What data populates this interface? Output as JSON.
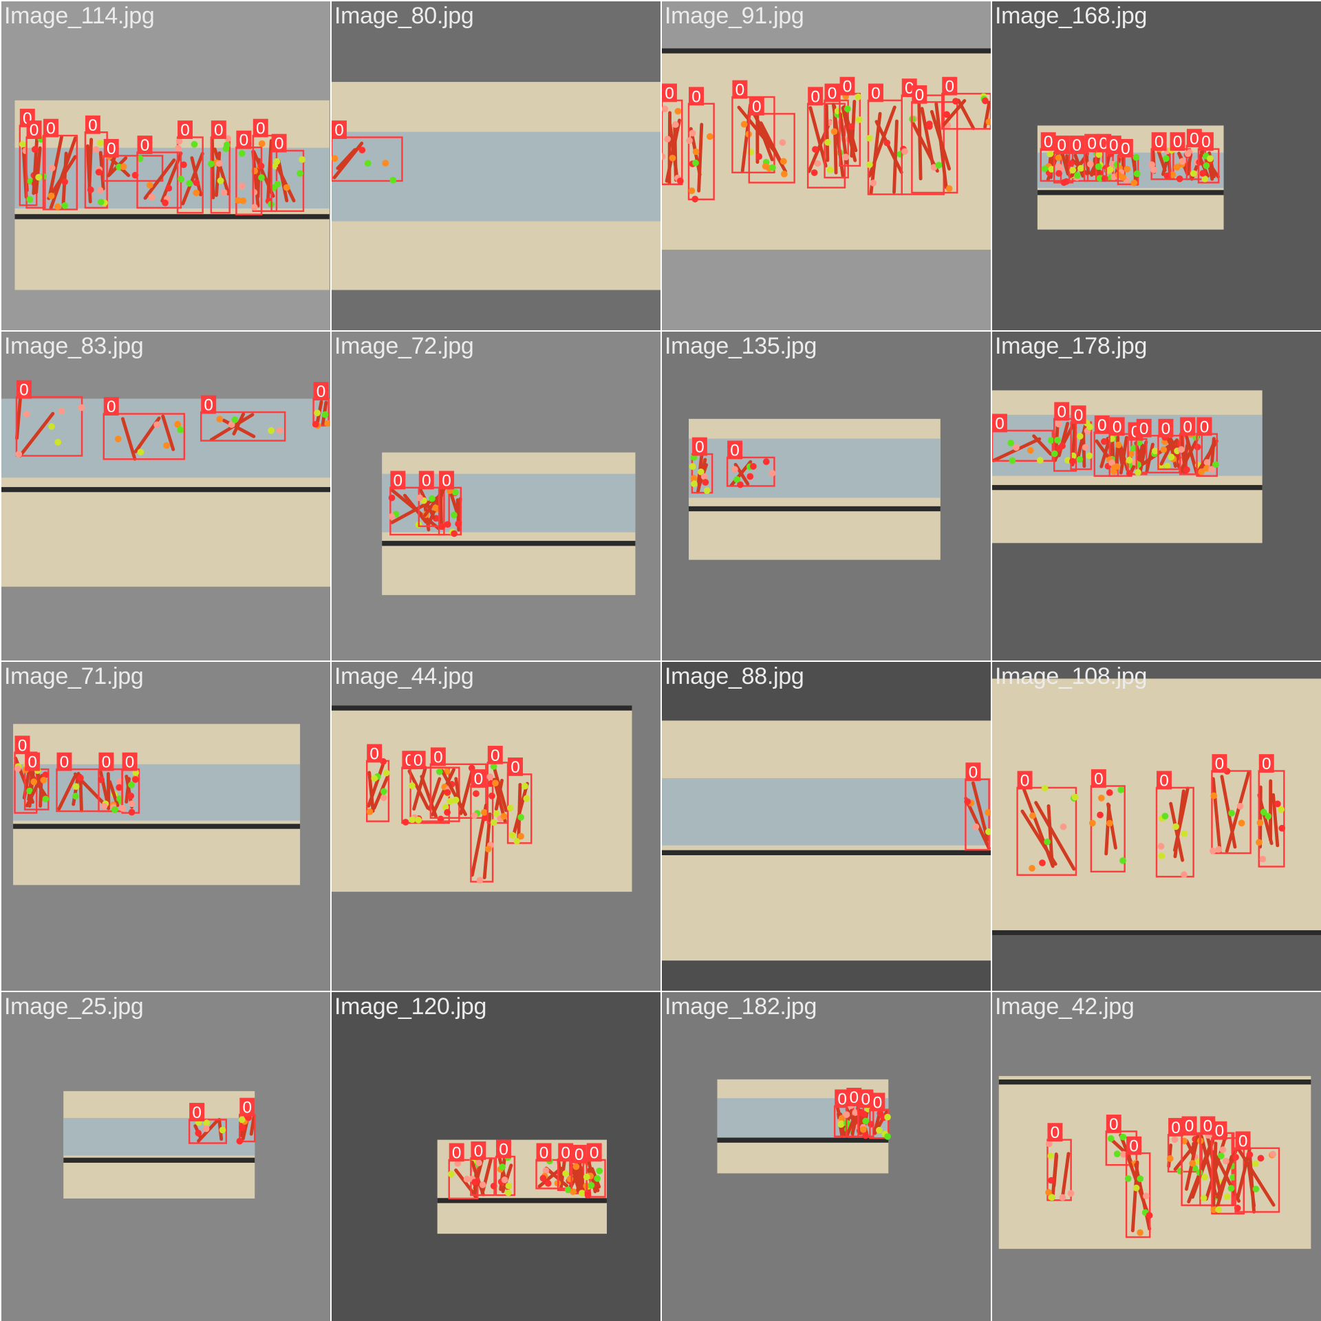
{
  "grid": {
    "tiles": [
      {
        "label": "Image_114.jpg",
        "bg": "#9a9a9a"
      },
      {
        "label": "Image_80.jpg",
        "bg": "#6e6e6e"
      },
      {
        "label": "Image_91.jpg",
        "bg": "#999999"
      },
      {
        "label": "Image_168.jpg",
        "bg": "#595959"
      },
      {
        "label": "Image_83.jpg",
        "bg": "#8c8c8c"
      },
      {
        "label": "Image_72.jpg",
        "bg": "#888888"
      },
      {
        "label": "Image_135.jpg",
        "bg": "#777777"
      },
      {
        "label": "Image_178.jpg",
        "bg": "#5e5e5e"
      },
      {
        "label": "Image_71.jpg",
        "bg": "#868686"
      },
      {
        "label": "Image_44.jpg",
        "bg": "#7c7c7c"
      },
      {
        "label": "Image_88.jpg",
        "bg": "#4e4e4e"
      },
      {
        "label": "Image_108.jpg",
        "bg": "#5b5b5b"
      },
      {
        "label": "Image_25.jpg",
        "bg": "#878787"
      },
      {
        "label": "Image_120.jpg",
        "bg": "#505050"
      },
      {
        "label": "Image_182.jpg",
        "bg": "#7a7a7a"
      },
      {
        "label": "Image_42.jpg",
        "bg": "#7f7f7f"
      }
    ],
    "class_label": "0",
    "colors": {
      "box": "#ff3b3b",
      "tag_bg": "#ff3b3b",
      "tag_text": "#ffffff",
      "table_wood": "#d9cfb0",
      "belt": "#a9b8bd",
      "rail": "#2a2a2a",
      "pepper": "#d23a22",
      "kp_green": "#5fe31e",
      "kp_yellow": "#cde42a",
      "kp_orange": "#ff8a1e",
      "kp_pink": "#ff9a8a",
      "kp_red": "#ff3030"
    }
  }
}
